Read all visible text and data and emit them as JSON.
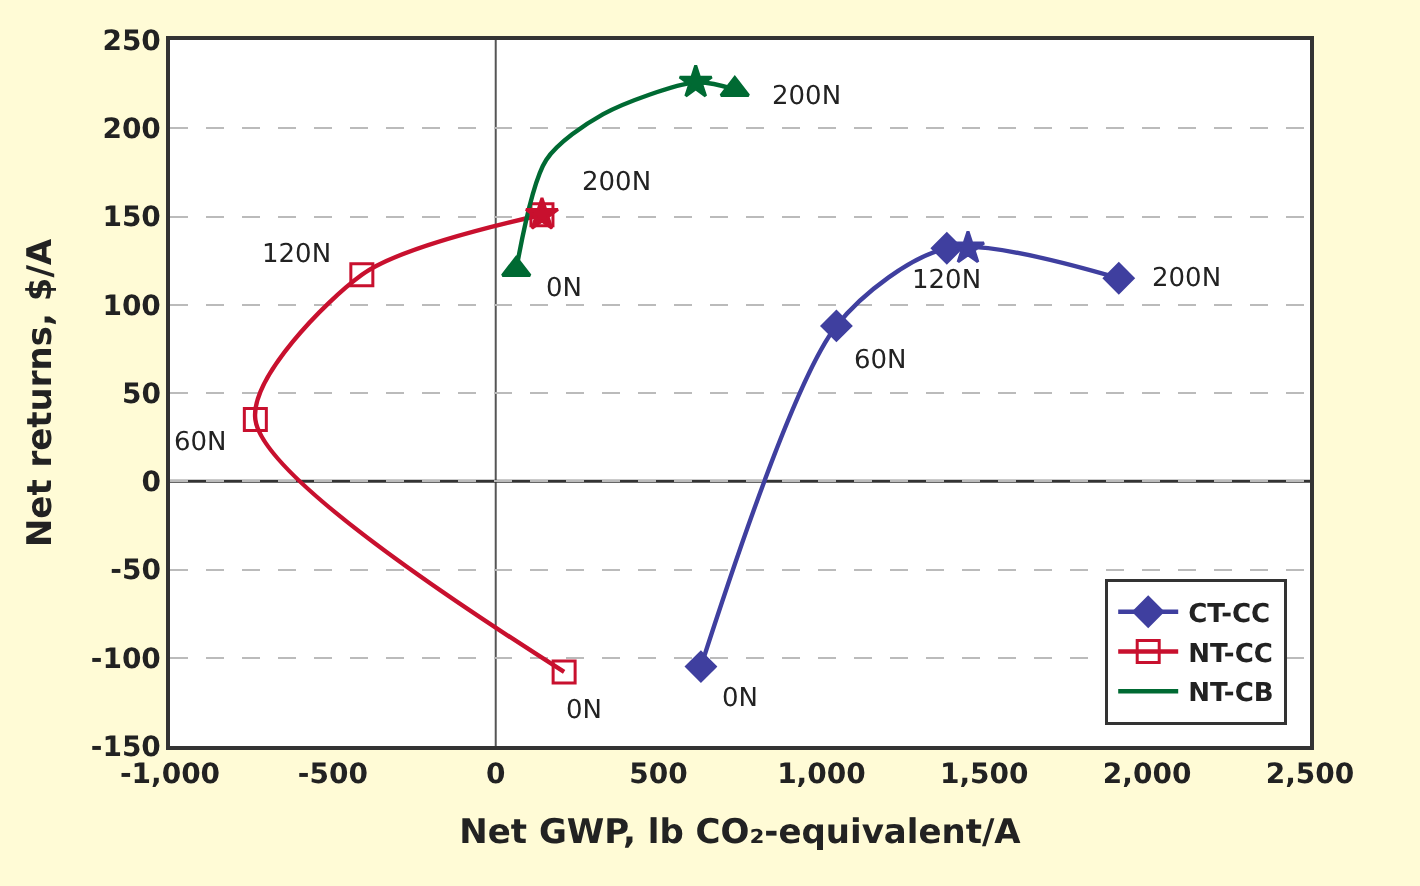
{
  "chart_data": {
    "type": "line",
    "xlabel": "Net GWP, lb CO₂-equivalent/A",
    "ylabel": "Net returns, $/A",
    "xlim": [
      -1000,
      2500
    ],
    "xticks": [
      {
        "value": -1000,
        "label": "-1,000"
      },
      -500,
      0,
      500,
      {
        "value": 1000,
        "label": "1,000"
      },
      {
        "value": 1500,
        "label": "1,500"
      },
      {
        "value": 2000,
        "label": "2,000"
      },
      {
        "value": 2500,
        "label": "2,500"
      }
    ],
    "ylim": [
      -150,
      250
    ],
    "yticks": [
      -150,
      -100,
      -50,
      0,
      50,
      100,
      150,
      200,
      250
    ],
    "grid": "y",
    "ref_lines": [
      {
        "axis": "x",
        "value": 0,
        "color": "#555555"
      },
      {
        "axis": "y",
        "value": 0,
        "color": "#333333"
      }
    ],
    "legend": "bottom right",
    "line_style": "solid",
    "series": [
      {
        "name": "CT-CC",
        "color": "#3f3f9f",
        "marker": "diamond",
        "x": [
          630,
          1046,
          1385,
          1913
        ],
        "values": [
          -105,
          88,
          132,
          115
        ]
      },
      {
        "name": "NT-CC",
        "color": "#c8102e",
        "marker": "square",
        "x": [
          210,
          -738,
          -411,
          142
        ],
        "values": [
          -108,
          35,
          117,
          151
        ]
      },
      {
        "name": "NT-CB",
        "color": "#006a33",
        "marker": "none",
        "x": [
          63,
          155,
          330,
          614,
          734
        ],
        "values": [
          120,
          182,
          208,
          226,
          222
        ]
      },
      {
        "type": "scatter",
        "color": "#006a33",
        "marker": "triangle",
        "x": [
          63,
          734
        ],
        "values": [
          120,
          222
        ]
      },
      {
        "type": "scatter",
        "color": "#3f3f9f",
        "marker": "star",
        "x": [
          1450
        ],
        "values": [
          132
        ]
      },
      {
        "type": "scatter",
        "color": "#c8102e",
        "marker": "star",
        "x": [
          142
        ],
        "values": [
          151
        ]
      },
      {
        "type": "scatter",
        "color": "#006a33",
        "marker": "star",
        "x": [
          614
        ],
        "values": [
          226
        ]
      }
    ],
    "annotations": [
      {
        "text": "0N",
        "x": 630,
        "y": -105
      },
      {
        "text": "60N",
        "x": 1046,
        "y": 88
      },
      {
        "text": "120N",
        "x": 1385,
        "y": 132
      },
      {
        "text": "200N",
        "x": 1913,
        "y": 115
      },
      {
        "text": "0N",
        "x": 210,
        "y": -108
      },
      {
        "text": "60N",
        "x": -738,
        "y": 35
      },
      {
        "text": "120N",
        "x": -411,
        "y": 117
      },
      {
        "text": "200N",
        "x": 142,
        "y": 151
      },
      {
        "text": "0N",
        "x": 63,
        "y": 120
      },
      {
        "text": "200N",
        "x": 734,
        "y": 222
      }
    ]
  }
}
